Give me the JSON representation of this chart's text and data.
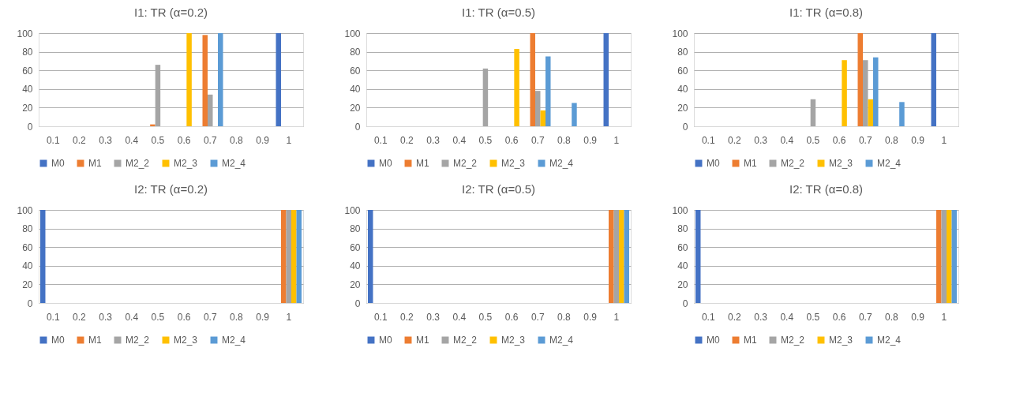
{
  "chart_data": [
    {
      "type": "bar",
      "title": "I1: TR  (α=0.2)",
      "categories": [
        "0.1",
        "0.2",
        "0.3",
        "0.4",
        "0.5",
        "0.6",
        "0.7",
        "0.8",
        "0.9",
        "1"
      ],
      "ylim": [
        0,
        100
      ],
      "yticks": [
        0,
        20,
        40,
        60,
        80,
        100
      ],
      "grid": "y",
      "legend": "bottom",
      "series": [
        {
          "name": "M0",
          "color": "#4472c4",
          "values": [
            0,
            0,
            0,
            0,
            0,
            0,
            0,
            0,
            0,
            100
          ]
        },
        {
          "name": "M1",
          "color": "#ed7d31",
          "values": [
            0,
            0,
            0,
            0,
            2,
            0,
            98,
            0,
            0,
            0
          ]
        },
        {
          "name": "M2_2",
          "color": "#a5a5a5",
          "values": [
            0,
            0,
            0,
            0,
            66,
            0,
            34,
            0,
            0,
            0
          ]
        },
        {
          "name": "M2_3",
          "color": "#ffc000",
          "values": [
            0,
            0,
            0,
            0,
            0,
            100,
            0,
            0,
            0,
            0
          ]
        },
        {
          "name": "M2_4",
          "color": "#5b9bd5",
          "values": [
            0,
            0,
            0,
            0,
            0,
            0,
            100,
            0,
            0,
            0
          ]
        }
      ]
    },
    {
      "type": "bar",
      "title": "I1: TR  (α=0.5)",
      "categories": [
        "0.1",
        "0.2",
        "0.3",
        "0.4",
        "0.5",
        "0.6",
        "0.7",
        "0.8",
        "0.9",
        "1"
      ],
      "ylim": [
        0,
        100
      ],
      "yticks": [
        0,
        20,
        40,
        60,
        80,
        100
      ],
      "grid": "y",
      "legend": "bottom",
      "series": [
        {
          "name": "M0",
          "color": "#4472c4",
          "values": [
            0,
            0,
            0,
            0,
            0,
            0,
            0,
            0,
            0,
            100
          ]
        },
        {
          "name": "M1",
          "color": "#ed7d31",
          "values": [
            0,
            0,
            0,
            0,
            0,
            0,
            100,
            0,
            0,
            0
          ]
        },
        {
          "name": "M2_2",
          "color": "#a5a5a5",
          "values": [
            0,
            0,
            0,
            0,
            62,
            0,
            38,
            0,
            0,
            0
          ]
        },
        {
          "name": "M2_3",
          "color": "#ffc000",
          "values": [
            0,
            0,
            0,
            0,
            0,
            83,
            17,
            0,
            0,
            0
          ]
        },
        {
          "name": "M2_4",
          "color": "#5b9bd5",
          "values": [
            0,
            0,
            0,
            0,
            0,
            0,
            75,
            25,
            0,
            0
          ]
        }
      ]
    },
    {
      "type": "bar",
      "title": "I1: TR  (α=0.8)",
      "categories": [
        "0.1",
        "0.2",
        "0.3",
        "0.4",
        "0.5",
        "0.6",
        "0.7",
        "0.8",
        "0.9",
        "1"
      ],
      "ylim": [
        0,
        100
      ],
      "yticks": [
        0,
        20,
        40,
        60,
        80,
        100
      ],
      "grid": "y",
      "legend": "bottom",
      "series": [
        {
          "name": "M0",
          "color": "#4472c4",
          "values": [
            0,
            0,
            0,
            0,
            0,
            0,
            0,
            0,
            0,
            100
          ]
        },
        {
          "name": "M1",
          "color": "#ed7d31",
          "values": [
            0,
            0,
            0,
            0,
            0,
            0,
            100,
            0,
            0,
            0
          ]
        },
        {
          "name": "M2_2",
          "color": "#a5a5a5",
          "values": [
            0,
            0,
            0,
            0,
            29,
            0,
            71,
            0,
            0,
            0
          ]
        },
        {
          "name": "M2_3",
          "color": "#ffc000",
          "values": [
            0,
            0,
            0,
            0,
            0,
            71,
            29,
            0,
            0,
            0
          ]
        },
        {
          "name": "M2_4",
          "color": "#5b9bd5",
          "values": [
            0,
            0,
            0,
            0,
            0,
            0,
            74,
            26,
            0,
            0
          ]
        }
      ]
    },
    {
      "type": "bar",
      "title": "I2: TR  (α=0.2)",
      "categories": [
        "0.1",
        "0.2",
        "0.3",
        "0.4",
        "0.5",
        "0.6",
        "0.7",
        "0.8",
        "0.9",
        "1"
      ],
      "ylim": [
        0,
        100
      ],
      "yticks": [
        0,
        20,
        40,
        60,
        80,
        100
      ],
      "grid": "y",
      "legend": "bottom",
      "series": [
        {
          "name": "M0",
          "color": "#4472c4",
          "values": [
            100,
            0,
            0,
            0,
            0,
            0,
            0,
            0,
            0,
            0
          ]
        },
        {
          "name": "M1",
          "color": "#ed7d31",
          "values": [
            0,
            0,
            0,
            0,
            0,
            0,
            0,
            0,
            0,
            100
          ]
        },
        {
          "name": "M2_2",
          "color": "#a5a5a5",
          "values": [
            0,
            0,
            0,
            0,
            0,
            0,
            0,
            0,
            0,
            100
          ]
        },
        {
          "name": "M2_3",
          "color": "#ffc000",
          "values": [
            0,
            0,
            0,
            0,
            0,
            0,
            0,
            0,
            0,
            100
          ]
        },
        {
          "name": "M2_4",
          "color": "#5b9bd5",
          "values": [
            0,
            0,
            0,
            0,
            0,
            0,
            0,
            0,
            0,
            100
          ]
        }
      ]
    },
    {
      "type": "bar",
      "title": "I2: TR  (α=0.5)",
      "categories": [
        "0.1",
        "0.2",
        "0.3",
        "0.4",
        "0.5",
        "0.6",
        "0.7",
        "0.8",
        "0.9",
        "1"
      ],
      "ylim": [
        0,
        100
      ],
      "yticks": [
        0,
        20,
        40,
        60,
        80,
        100
      ],
      "grid": "y",
      "legend": "bottom",
      "series": [
        {
          "name": "M0",
          "color": "#4472c4",
          "values": [
            100,
            0,
            0,
            0,
            0,
            0,
            0,
            0,
            0,
            0
          ]
        },
        {
          "name": "M1",
          "color": "#ed7d31",
          "values": [
            0,
            0,
            0,
            0,
            0,
            0,
            0,
            0,
            0,
            100
          ]
        },
        {
          "name": "M2_2",
          "color": "#a5a5a5",
          "values": [
            0,
            0,
            0,
            0,
            0,
            0,
            0,
            0,
            0,
            100
          ]
        },
        {
          "name": "M2_3",
          "color": "#ffc000",
          "values": [
            0,
            0,
            0,
            0,
            0,
            0,
            0,
            0,
            0,
            100
          ]
        },
        {
          "name": "M2_4",
          "color": "#5b9bd5",
          "values": [
            0,
            0,
            0,
            0,
            0,
            0,
            0,
            0,
            0,
            100
          ]
        }
      ]
    },
    {
      "type": "bar",
      "title": "I2: TR  (α=0.8)",
      "categories": [
        "0.1",
        "0.2",
        "0.3",
        "0.4",
        "0.5",
        "0.6",
        "0.7",
        "0.8",
        "0.9",
        "1"
      ],
      "ylim": [
        0,
        100
      ],
      "yticks": [
        0,
        20,
        40,
        60,
        80,
        100
      ],
      "grid": "y",
      "legend": "bottom",
      "series": [
        {
          "name": "M0",
          "color": "#4472c4",
          "values": [
            100,
            0,
            0,
            0,
            0,
            0,
            0,
            0,
            0,
            0
          ]
        },
        {
          "name": "M1",
          "color": "#ed7d31",
          "values": [
            0,
            0,
            0,
            0,
            0,
            0,
            0,
            0,
            0,
            100
          ]
        },
        {
          "name": "M2_2",
          "color": "#a5a5a5",
          "values": [
            0,
            0,
            0,
            0,
            0,
            0,
            0,
            0,
            0,
            100
          ]
        },
        {
          "name": "M2_3",
          "color": "#ffc000",
          "values": [
            0,
            0,
            0,
            0,
            0,
            0,
            0,
            0,
            0,
            100
          ]
        },
        {
          "name": "M2_4",
          "color": "#5b9bd5",
          "values": [
            0,
            0,
            0,
            0,
            0,
            0,
            0,
            0,
            0,
            100
          ]
        }
      ]
    }
  ]
}
